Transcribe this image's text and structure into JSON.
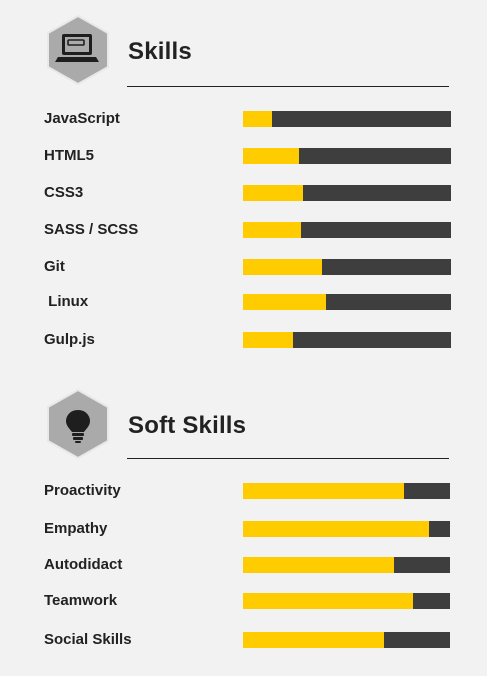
{
  "colors": {
    "background": "#f2f2f2",
    "bar_fill": "#ffcc00",
    "bar_track": "#3e3e3e",
    "hex_fill": "#aaaaaa",
    "text": "#222222"
  },
  "skills": {
    "title": "Skills",
    "icon": "laptop-icon",
    "items": [
      {
        "label": "JavaScript",
        "level": 0.14
      },
      {
        "label": "HTML5",
        "level": 0.27
      },
      {
        "label": "CSS3",
        "level": 0.29
      },
      {
        "label": "SASS / SCSS",
        "level": 0.28
      },
      {
        "label": "Git",
        "level": 0.38
      },
      {
        "label": " Linux",
        "level": 0.4
      },
      {
        "label": "Gulp.js",
        "level": 0.24
      }
    ]
  },
  "soft_skills": {
    "title": "Soft Skills",
    "icon": "lightbulb-icon",
    "items": [
      {
        "label": "Proactivity",
        "level": 0.78
      },
      {
        "label": "Empathy",
        "level": 0.9
      },
      {
        "label": "Autodidact",
        "level": 0.73
      },
      {
        "label": "Teamwork",
        "level": 0.82
      },
      {
        "label": "Social Skills",
        "level": 0.68
      }
    ]
  }
}
